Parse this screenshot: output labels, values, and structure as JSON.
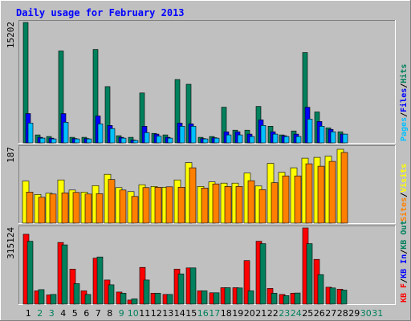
{
  "chart_data": [
    {
      "type": "bar",
      "title": "Daily usage for February 2013",
      "ymax_label": "15202",
      "legend": [
        "Pages",
        "Files",
        "Hits"
      ],
      "categories": [
        "1",
        "2",
        "3",
        "4",
        "5",
        "6",
        "7",
        "8",
        "9",
        "10",
        "11",
        "12",
        "13",
        "14",
        "15",
        "16",
        "17",
        "18",
        "19",
        "20",
        "21",
        "22",
        "23",
        "24",
        "25",
        "26",
        "27",
        "28",
        "29",
        "30",
        "31"
      ],
      "weekend_days": [
        "2",
        "3",
        "9",
        "10",
        "16",
        "17",
        "23",
        "24",
        "30",
        "31"
      ],
      "ylim": [
        0,
        15202
      ],
      "series": [
        {
          "name": "Hits",
          "values": [
            15202,
            1000,
            800,
            11600,
            700,
            700,
            11800,
            7100,
            900,
            700,
            6300,
            1200,
            1000,
            8000,
            7400,
            700,
            800,
            4500,
            1600,
            1600,
            4600,
            2100,
            1000,
            1500,
            11400,
            3900,
            1900,
            1400,
            0,
            0,
            0
          ]
        },
        {
          "name": "Files",
          "values": [
            3700,
            700,
            600,
            3700,
            550,
            550,
            3400,
            2200,
            700,
            350,
            2100,
            1100,
            700,
            2500,
            2400,
            550,
            650,
            1400,
            1400,
            1100,
            2900,
            1400,
            900,
            1100,
            4500,
            2700,
            1700,
            1100,
            0,
            0,
            0
          ]
        },
        {
          "name": "Pages",
          "values": [
            2500,
            600,
            500,
            2600,
            500,
            500,
            2400,
            1800,
            600,
            300,
            1300,
            850,
            600,
            2100,
            2100,
            500,
            600,
            1000,
            1000,
            800,
            2200,
            1100,
            800,
            800,
            3000,
            2100,
            1400,
            1100,
            0,
            0,
            0
          ]
        }
      ]
    },
    {
      "type": "bar",
      "ymax_label": "187",
      "legend": [
        "Sites",
        "Visits"
      ],
      "ylim": [
        0,
        187
      ],
      "series": [
        {
          "name": "Visits",
          "values": [
            104,
            71,
            74,
            107,
            82,
            77,
            93,
            121,
            88,
            78,
            95,
            91,
            89,
            107,
            150,
            91,
            102,
            99,
            99,
            124,
            92,
            148,
            126,
            137,
            161,
            163,
            166,
            183,
            0,
            0,
            0
          ]
        },
        {
          "name": "Sites",
          "values": [
            77,
            64,
            72,
            75,
            76,
            72,
            73,
            108,
            82,
            66,
            88,
            89,
            90,
            89,
            137,
            87,
            97,
            91,
            91,
            105,
            83,
            100,
            117,
            117,
            147,
            141,
            153,
            175,
            0,
            0,
            0
          ]
        }
      ]
    },
    {
      "type": "bar",
      "ymax_label": "315124",
      "legend": [
        "KB F",
        "KB In",
        "KB Out"
      ],
      "ylim": [
        0,
        315124
      ],
      "series": [
        {
          "name": "KB F",
          "values": [
            289000,
            55000,
            38000,
            255000,
            145000,
            55000,
            190000,
            100000,
            50000,
            17000,
            152000,
            45000,
            40000,
            145000,
            150000,
            55000,
            47000,
            68000,
            68000,
            180000,
            260000,
            65000,
            40000,
            45000,
            315124,
            185000,
            70000,
            62000,
            0,
            0,
            0
          ]
        },
        {
          "name": "KB Out",
          "values": [
            260000,
            60000,
            40000,
            245000,
            85000,
            40000,
            195000,
            80000,
            45000,
            22000,
            100000,
            45000,
            40000,
            125000,
            150000,
            55000,
            47000,
            68000,
            67000,
            55000,
            250000,
            45000,
            35000,
            46000,
            250000,
            122000,
            67000,
            58000,
            0,
            0,
            0
          ]
        }
      ]
    }
  ]
}
